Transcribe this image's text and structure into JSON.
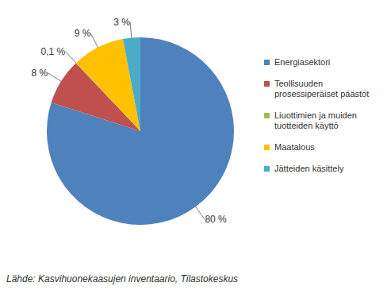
{
  "chart_data": {
    "type": "pie",
    "categories": [
      "Energiasektori",
      "Teollisuuden prosessiperäiset päästöt",
      "Liuottimien ja muiden tuotteiden käyttö",
      "Maatalous",
      "Jätteiden käsittely"
    ],
    "values": [
      80,
      8,
      0.1,
      9,
      3
    ],
    "value_labels": [
      "80 %",
      "8 %",
      "0,1 %",
      "9 %",
      "3 %"
    ],
    "colors": [
      "#4f81bd",
      "#c0504d",
      "#9bbb59",
      "#ffc000",
      "#4bacc6"
    ],
    "data_labels": true,
    "legend": "right",
    "source": "Lähde: Kasvihuonekaasujen inventaario, Tilastokeskus"
  }
}
